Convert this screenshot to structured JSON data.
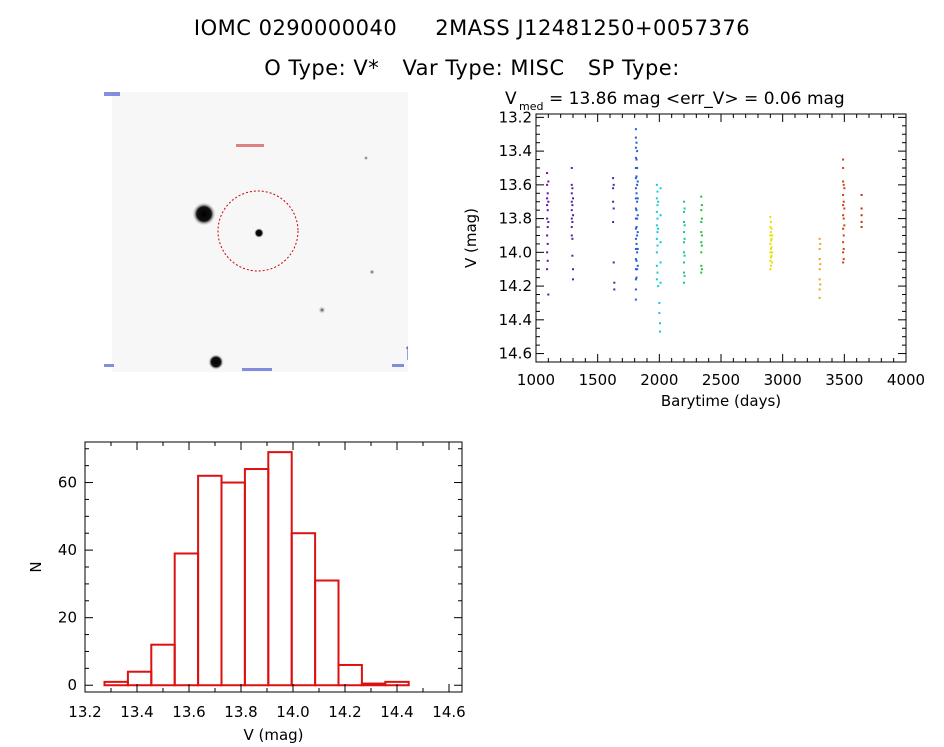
{
  "header": {
    "star_id": "IOMC 0290000040",
    "twomass_id": "2MASS J12481250+0057376",
    "otype_label": "O Type: V*",
    "vartype_label": "Var Type: MISC",
    "sptype_label": "SP Type:"
  },
  "thumbnail": {
    "description_label": "",
    "circle_color": "#cc0000"
  },
  "chart_data": [
    {
      "type": "scatter",
      "title_prefix": "V",
      "title_subscript": "med",
      "title_rest": " = 13.86 mag <err_V> = 0.06 mag",
      "xlabel": "Barytime (days)",
      "ylabel": "V (mag)",
      "xlim": [
        1000,
        4000
      ],
      "ylim": [
        14.65,
        13.18
      ],
      "y_inverted": true,
      "xticks": [
        1000,
        1500,
        2000,
        2500,
        3000,
        3500,
        4000
      ],
      "yticks": [
        13.2,
        13.4,
        13.6,
        13.8,
        14.0,
        14.2,
        14.4,
        14.6
      ],
      "ytick_labels": [
        "13.2",
        "13.4",
        "13.6",
        "13.8",
        "14.0",
        "14.2",
        "14.4",
        "14.6"
      ],
      "grid": false,
      "series": [
        {
          "color": "#6a0dad",
          "points": [
            [
              1090,
              13.53
            ],
            [
              1090,
              13.6
            ],
            [
              1090,
              13.68
            ],
            [
              1090,
              13.72
            ],
            [
              1090,
              13.8
            ],
            [
              1090,
              13.9
            ],
            [
              1090,
              14.0
            ],
            [
              1090,
              14.1
            ],
            [
              1095,
              13.65
            ],
            [
              1095,
              13.75
            ],
            [
              1095,
              13.85
            ],
            [
              1095,
              13.95
            ],
            [
              1095,
              14.05
            ],
            [
              1100,
              13.58
            ],
            [
              1100,
              13.7
            ],
            [
              1100,
              13.82
            ],
            [
              1100,
              14.25
            ]
          ]
        },
        {
          "color": "#5a1f9e",
          "points": [
            [
              1290,
              13.5
            ],
            [
              1290,
              13.6
            ],
            [
              1290,
              13.65
            ],
            [
              1290,
              13.7
            ],
            [
              1290,
              13.75
            ],
            [
              1290,
              13.8
            ],
            [
              1290,
              13.85
            ],
            [
              1290,
              13.9
            ],
            [
              1295,
              13.62
            ],
            [
              1295,
              13.72
            ],
            [
              1295,
              13.82
            ],
            [
              1295,
              13.92
            ],
            [
              1295,
              14.02
            ],
            [
              1300,
              13.68
            ],
            [
              1300,
              13.78
            ],
            [
              1300,
              14.1
            ],
            [
              1300,
              14.16
            ]
          ]
        },
        {
          "color": "#3a2fb0",
          "points": [
            [
              1625,
              13.56
            ],
            [
              1625,
              13.62
            ],
            [
              1625,
              13.7
            ],
            [
              1625,
              13.82
            ],
            [
              1630,
              13.6
            ],
            [
              1630,
              13.74
            ],
            [
              1630,
              14.06
            ],
            [
              1635,
              14.18
            ],
            [
              1635,
              14.22
            ]
          ]
        },
        {
          "color": "#1f5fcf",
          "points": [
            [
              1810,
              13.27
            ],
            [
              1810,
              13.32
            ],
            [
              1810,
              13.38
            ],
            [
              1810,
              13.44
            ],
            [
              1810,
              13.5
            ],
            [
              1810,
              13.56
            ],
            [
              1810,
              13.62
            ],
            [
              1810,
              13.68
            ],
            [
              1810,
              13.74
            ],
            [
              1810,
              13.8
            ],
            [
              1810,
              13.86
            ],
            [
              1810,
              13.92
            ],
            [
              1810,
              13.98
            ],
            [
              1810,
              14.04
            ],
            [
              1810,
              14.1
            ],
            [
              1810,
              14.16
            ],
            [
              1810,
              14.22
            ],
            [
              1810,
              14.28
            ],
            [
              1815,
              13.35
            ],
            [
              1815,
              13.45
            ],
            [
              1815,
              13.55
            ],
            [
              1815,
              13.65
            ],
            [
              1815,
              13.75
            ],
            [
              1815,
              13.85
            ],
            [
              1815,
              13.95
            ],
            [
              1815,
              14.05
            ],
            [
              1815,
              14.15
            ],
            [
              1820,
              13.4
            ],
            [
              1820,
              13.5
            ],
            [
              1820,
              13.6
            ],
            [
              1820,
              13.7
            ],
            [
              1820,
              13.8
            ],
            [
              1820,
              13.9
            ],
            [
              1820,
              14.0
            ],
            [
              1820,
              14.1
            ],
            [
              1825,
              13.58
            ],
            [
              1825,
              13.68
            ],
            [
              1825,
              13.78
            ],
            [
              1825,
              13.88
            ],
            [
              1825,
              13.98
            ],
            [
              1825,
              14.08
            ]
          ]
        },
        {
          "color": "#17c8d8",
          "points": [
            [
              1980,
              13.6
            ],
            [
              1980,
              13.68
            ],
            [
              1980,
              13.76
            ],
            [
              1980,
              13.84
            ],
            [
              1980,
              13.92
            ],
            [
              1980,
              14.0
            ],
            [
              1980,
              14.08
            ],
            [
              1980,
              14.16
            ],
            [
              1985,
              13.64
            ],
            [
              1985,
              13.72
            ],
            [
              1985,
              13.8
            ],
            [
              1985,
              13.88
            ],
            [
              1985,
              13.96
            ],
            [
              1985,
              14.12
            ],
            [
              1990,
              13.7
            ],
            [
              1990,
              13.86
            ],
            [
              1990,
              14.2
            ],
            [
              2000,
              14.3
            ],
            [
              2000,
              14.36
            ],
            [
              2005,
              14.42
            ],
            [
              2005,
              14.47
            ],
            [
              2010,
              13.62
            ],
            [
              2010,
              13.78
            ],
            [
              2010,
              13.94
            ],
            [
              2010,
              14.06
            ],
            [
              2010,
              14.18
            ]
          ]
        },
        {
          "color": "#1fc97a",
          "points": [
            [
              2200,
              13.7
            ],
            [
              2200,
              13.76
            ],
            [
              2200,
              13.82
            ],
            [
              2200,
              13.88
            ],
            [
              2200,
              13.94
            ],
            [
              2200,
              14.0
            ],
            [
              2200,
              14.06
            ],
            [
              2200,
              14.12
            ],
            [
              2200,
              14.18
            ],
            [
              2205,
              13.74
            ],
            [
              2205,
              13.84
            ],
            [
              2205,
              13.92
            ],
            [
              2205,
              14.02
            ],
            [
              2205,
              14.14
            ]
          ]
        },
        {
          "color": "#22c23a",
          "points": [
            [
              2340,
              13.67
            ],
            [
              2340,
              13.75
            ],
            [
              2340,
              13.82
            ],
            [
              2340,
              13.88
            ],
            [
              2340,
              13.94
            ],
            [
              2340,
              14.0
            ],
            [
              2340,
              14.08
            ],
            [
              2340,
              14.12
            ],
            [
              2345,
              13.72
            ],
            [
              2345,
              13.8
            ],
            [
              2345,
              13.9
            ],
            [
              2345,
              13.96
            ],
            [
              2345,
              14.1
            ]
          ]
        },
        {
          "color": "#e8e000",
          "points": [
            [
              2900,
              13.79
            ],
            [
              2900,
              13.85
            ],
            [
              2900,
              13.9
            ],
            [
              2900,
              13.95
            ],
            [
              2900,
              14.0
            ],
            [
              2900,
              14.05
            ],
            [
              2900,
              14.1
            ],
            [
              2905,
              13.82
            ],
            [
              2905,
              13.88
            ],
            [
              2905,
              13.93
            ],
            [
              2905,
              13.98
            ],
            [
              2905,
              14.03
            ],
            [
              2905,
              14.08
            ],
            [
              2910,
              13.86
            ],
            [
              2910,
              13.92
            ],
            [
              2910,
              13.97
            ],
            [
              2910,
              14.02
            ],
            [
              2915,
              13.9
            ],
            [
              2915,
              14.0
            ],
            [
              2915,
              14.06
            ]
          ]
        },
        {
          "color": "#f0a020",
          "points": [
            [
              3300,
              13.92
            ],
            [
              3300,
              13.98
            ],
            [
              3300,
              14.04
            ],
            [
              3300,
              14.1
            ],
            [
              3300,
              14.16
            ],
            [
              3300,
              14.22
            ],
            [
              3300,
              14.27
            ],
            [
              3305,
              13.95
            ],
            [
              3305,
              14.07
            ],
            [
              3305,
              14.19
            ]
          ]
        },
        {
          "color": "#d24010",
          "points": [
            [
              3490,
              13.45
            ],
            [
              3490,
              13.5
            ],
            [
              3490,
              13.58
            ],
            [
              3490,
              13.66
            ],
            [
              3490,
              13.72
            ],
            [
              3490,
              13.78
            ],
            [
              3490,
              13.86
            ],
            [
              3490,
              13.94
            ],
            [
              3490,
              14.0
            ],
            [
              3490,
              14.06
            ],
            [
              3495,
              13.6
            ],
            [
              3495,
              13.7
            ],
            [
              3495,
              13.8
            ],
            [
              3495,
              13.9
            ],
            [
              3495,
              13.98
            ],
            [
              3495,
              14.04
            ],
            [
              3500,
              13.62
            ],
            [
              3500,
              13.74
            ],
            [
              3500,
              13.84
            ]
          ]
        },
        {
          "color": "#c83010",
          "points": [
            [
              3640,
              13.66
            ],
            [
              3640,
              13.74
            ],
            [
              3640,
              13.78
            ],
            [
              3640,
              13.82
            ],
            [
              3640,
              13.85
            ]
          ]
        }
      ]
    },
    {
      "type": "bar",
      "xlabel": "V (mag)",
      "ylabel": "N",
      "xlim": [
        13.2,
        14.65
      ],
      "ylim": [
        -2,
        72
      ],
      "xticks": [
        13.2,
        13.4,
        13.6,
        13.8,
        14.0,
        14.2,
        14.4,
        14.6
      ],
      "xtick_labels": [
        "13.2",
        "13.4",
        "13.6",
        "13.8",
        "14.0",
        "14.2",
        "14.4",
        "14.6"
      ],
      "yticks": [
        0,
        20,
        40,
        60
      ],
      "ytick_labels": [
        "0",
        "20",
        "40",
        "60"
      ],
      "bar_color": "#dd1111",
      "bins": [
        {
          "x0": 13.275,
          "x1": 13.365,
          "n": 1
        },
        {
          "x0": 13.365,
          "x1": 13.455,
          "n": 4
        },
        {
          "x0": 13.455,
          "x1": 13.545,
          "n": 12
        },
        {
          "x0": 13.545,
          "x1": 13.635,
          "n": 39
        },
        {
          "x0": 13.635,
          "x1": 13.725,
          "n": 62
        },
        {
          "x0": 13.725,
          "x1": 13.815,
          "n": 60
        },
        {
          "x0": 13.815,
          "x1": 13.905,
          "n": 64
        },
        {
          "x0": 13.905,
          "x1": 13.995,
          "n": 69
        },
        {
          "x0": 13.995,
          "x1": 14.085,
          "n": 45
        },
        {
          "x0": 14.085,
          "x1": 14.175,
          "n": 31
        },
        {
          "x0": 14.175,
          "x1": 14.265,
          "n": 6
        },
        {
          "x0": 14.265,
          "x1": 14.355,
          "n": 0.5
        },
        {
          "x0": 14.355,
          "x1": 14.445,
          "n": 1
        },
        {
          "x0": 14.445,
          "x1": 14.535,
          "n": 0
        }
      ]
    }
  ]
}
